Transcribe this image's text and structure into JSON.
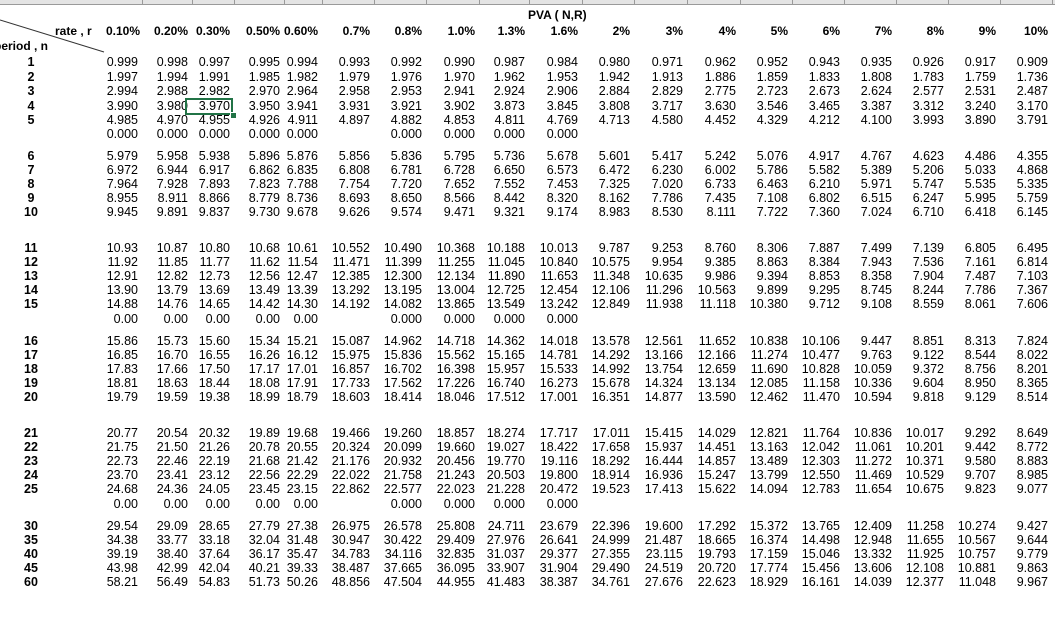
{
  "sheet": {
    "title": "PVA ( N,R)",
    "corner_top": "rate , r",
    "corner_bottom": "period , n",
    "rates": [
      "0.10%",
      "0.20%",
      "0.30%",
      "0.50%",
      "0.60%",
      "0.7%",
      "0.8%",
      "1.0%",
      "1.3%",
      "1.6%",
      "2%",
      "3%",
      "4%",
      "5%",
      "6%",
      "7%",
      "8%",
      "9%",
      "10%"
    ],
    "selected_cell": {
      "row": "4",
      "rate": "0.30%",
      "value": "3.970"
    },
    "rows": [
      {
        "n": "1",
        "values": [
          "0.999",
          "0.998",
          "0.997",
          "0.995",
          "0.994",
          "0.993",
          "0.992",
          "0.990",
          "0.987",
          "0.984",
          "0.980",
          "0.971",
          "0.962",
          "0.952",
          "0.943",
          "0.935",
          "0.926",
          "0.917",
          "0.909"
        ]
      },
      {
        "n": "2",
        "values": [
          "1.997",
          "1.994",
          "1.991",
          "1.985",
          "1.982",
          "1.979",
          "1.976",
          "1.970",
          "1.962",
          "1.953",
          "1.942",
          "1.913",
          "1.886",
          "1.859",
          "1.833",
          "1.808",
          "1.783",
          "1.759",
          "1.736"
        ]
      },
      {
        "n": "3",
        "values": [
          "2.994",
          "2.988",
          "2.982",
          "2.970",
          "2.964",
          "2.958",
          "2.953",
          "2.941",
          "2.924",
          "2.906",
          "2.884",
          "2.829",
          "2.775",
          "2.723",
          "2.673",
          "2.624",
          "2.577",
          "2.531",
          "2.487"
        ]
      },
      {
        "n": "4",
        "values": [
          "3.990",
          "3.980",
          "3.970",
          "3.950",
          "3.941",
          "3.931",
          "3.921",
          "3.902",
          "3.873",
          "3.845",
          "3.808",
          "3.717",
          "3.630",
          "3.546",
          "3.465",
          "3.387",
          "3.312",
          "3.240",
          "3.170"
        ]
      },
      {
        "n": "5",
        "values": [
          "4.985",
          "4.970",
          "4.955",
          "4.926",
          "4.911",
          "4.897",
          "4.882",
          "4.853",
          "4.811",
          "4.769",
          "4.713",
          "4.580",
          "4.452",
          "4.329",
          "4.212",
          "4.100",
          "3.993",
          "3.890",
          "3.791"
        ]
      },
      {
        "n": "",
        "values": [
          "0.000",
          "0.000",
          "0.000",
          "0.000",
          "0.000",
          "",
          "0.000",
          "0.000",
          "0.000",
          "0.000",
          "",
          "",
          "",
          "",
          "",
          "",
          "",
          "",
          ""
        ]
      },
      {
        "n": "6",
        "values": [
          "5.979",
          "5.958",
          "5.938",
          "5.896",
          "5.876",
          "5.856",
          "5.836",
          "5.795",
          "5.736",
          "5.678",
          "5.601",
          "5.417",
          "5.242",
          "5.076",
          "4.917",
          "4.767",
          "4.623",
          "4.486",
          "4.355"
        ]
      },
      {
        "n": "7",
        "values": [
          "6.972",
          "6.944",
          "6.917",
          "6.862",
          "6.835",
          "6.808",
          "6.781",
          "6.728",
          "6.650",
          "6.573",
          "6.472",
          "6.230",
          "6.002",
          "5.786",
          "5.582",
          "5.389",
          "5.206",
          "5.033",
          "4.868"
        ]
      },
      {
        "n": "8",
        "values": [
          "7.964",
          "7.928",
          "7.893",
          "7.823",
          "7.788",
          "7.754",
          "7.720",
          "7.652",
          "7.552",
          "7.453",
          "7.325",
          "7.020",
          "6.733",
          "6.463",
          "6.210",
          "5.971",
          "5.747",
          "5.535",
          "5.335"
        ]
      },
      {
        "n": "9",
        "values": [
          "8.955",
          "8.911",
          "8.866",
          "8.779",
          "8.736",
          "8.693",
          "8.650",
          "8.566",
          "8.442",
          "8.320",
          "8.162",
          "7.786",
          "7.435",
          "7.108",
          "6.802",
          "6.515",
          "6.247",
          "5.995",
          "5.759"
        ]
      },
      {
        "n": "10",
        "values": [
          "9.945",
          "9.891",
          "9.837",
          "9.730",
          "9.678",
          "9.626",
          "9.574",
          "9.471",
          "9.321",
          "9.174",
          "8.983",
          "8.530",
          "8.111",
          "7.722",
          "7.360",
          "7.024",
          "6.710",
          "6.418",
          "6.145"
        ]
      },
      {
        "n": "",
        "values": [
          "",
          "",
          "",
          "",
          "",
          "",
          "",
          "",
          "",
          "",
          "",
          "",
          "",
          "",
          "",
          "",
          "",
          "",
          ""
        ]
      },
      {
        "n": "11",
        "values": [
          "10.93",
          "10.87",
          "10.80",
          "10.68",
          "10.61",
          "10.552",
          "10.490",
          "10.368",
          "10.188",
          "10.013",
          "9.787",
          "9.253",
          "8.760",
          "8.306",
          "7.887",
          "7.499",
          "7.139",
          "6.805",
          "6.495"
        ]
      },
      {
        "n": "12",
        "values": [
          "11.92",
          "11.85",
          "11.77",
          "11.62",
          "11.54",
          "11.471",
          "11.399",
          "11.255",
          "11.045",
          "10.840",
          "10.575",
          "9.954",
          "9.385",
          "8.863",
          "8.384",
          "7.943",
          "7.536",
          "7.161",
          "6.814"
        ]
      },
      {
        "n": "13",
        "values": [
          "12.91",
          "12.82",
          "12.73",
          "12.56",
          "12.47",
          "12.385",
          "12.300",
          "12.134",
          "11.890",
          "11.653",
          "11.348",
          "10.635",
          "9.986",
          "9.394",
          "8.853",
          "8.358",
          "7.904",
          "7.487",
          "7.103"
        ]
      },
      {
        "n": "14",
        "values": [
          "13.90",
          "13.79",
          "13.69",
          "13.49",
          "13.39",
          "13.292",
          "13.195",
          "13.004",
          "12.725",
          "12.454",
          "12.106",
          "11.296",
          "10.563",
          "9.899",
          "9.295",
          "8.745",
          "8.244",
          "7.786",
          "7.367"
        ]
      },
      {
        "n": "15",
        "values": [
          "14.88",
          "14.76",
          "14.65",
          "14.42",
          "14.30",
          "14.192",
          "14.082",
          "13.865",
          "13.549",
          "13.242",
          "12.849",
          "11.938",
          "11.118",
          "10.380",
          "9.712",
          "9.108",
          "8.559",
          "8.061",
          "7.606"
        ]
      },
      {
        "n": "",
        "values": [
          "0.00",
          "0.00",
          "0.00",
          "0.00",
          "0.00",
          "",
          "0.000",
          "0.000",
          "0.000",
          "0.000",
          "",
          "",
          "",
          "",
          "",
          "",
          "",
          "",
          ""
        ]
      },
      {
        "n": "16",
        "values": [
          "15.86",
          "15.73",
          "15.60",
          "15.34",
          "15.21",
          "15.087",
          "14.962",
          "14.718",
          "14.362",
          "14.018",
          "13.578",
          "12.561",
          "11.652",
          "10.838",
          "10.106",
          "9.447",
          "8.851",
          "8.313",
          "7.824"
        ]
      },
      {
        "n": "17",
        "values": [
          "16.85",
          "16.70",
          "16.55",
          "16.26",
          "16.12",
          "15.975",
          "15.836",
          "15.562",
          "15.165",
          "14.781",
          "14.292",
          "13.166",
          "12.166",
          "11.274",
          "10.477",
          "9.763",
          "9.122",
          "8.544",
          "8.022"
        ]
      },
      {
        "n": "18",
        "values": [
          "17.83",
          "17.66",
          "17.50",
          "17.17",
          "17.01",
          "16.857",
          "16.702",
          "16.398",
          "15.957",
          "15.533",
          "14.992",
          "13.754",
          "12.659",
          "11.690",
          "10.828",
          "10.059",
          "9.372",
          "8.756",
          "8.201"
        ]
      },
      {
        "n": "19",
        "values": [
          "18.81",
          "18.63",
          "18.44",
          "18.08",
          "17.91",
          "17.733",
          "17.562",
          "17.226",
          "16.740",
          "16.273",
          "15.678",
          "14.324",
          "13.134",
          "12.085",
          "11.158",
          "10.336",
          "9.604",
          "8.950",
          "8.365"
        ]
      },
      {
        "n": "20",
        "values": [
          "19.79",
          "19.59",
          "19.38",
          "18.99",
          "18.79",
          "18.603",
          "18.414",
          "18.046",
          "17.512",
          "17.001",
          "16.351",
          "14.877",
          "13.590",
          "12.462",
          "11.470",
          "10.594",
          "9.818",
          "9.129",
          "8.514"
        ]
      },
      {
        "n": "",
        "values": [
          "",
          "",
          "",
          "",
          "",
          "",
          "",
          "",
          "",
          "",
          "",
          "",
          "",
          "",
          "",
          "",
          "",
          "",
          ""
        ]
      },
      {
        "n": "21",
        "values": [
          "20.77",
          "20.54",
          "20.32",
          "19.89",
          "19.68",
          "19.466",
          "19.260",
          "18.857",
          "18.274",
          "17.717",
          "17.011",
          "15.415",
          "14.029",
          "12.821",
          "11.764",
          "10.836",
          "10.017",
          "9.292",
          "8.649"
        ]
      },
      {
        "n": "22",
        "values": [
          "21.75",
          "21.50",
          "21.26",
          "20.78",
          "20.55",
          "20.324",
          "20.099",
          "19.660",
          "19.027",
          "18.422",
          "17.658",
          "15.937",
          "14.451",
          "13.163",
          "12.042",
          "11.061",
          "10.201",
          "9.442",
          "8.772"
        ]
      },
      {
        "n": "23",
        "values": [
          "22.73",
          "22.46",
          "22.19",
          "21.68",
          "21.42",
          "21.176",
          "20.932",
          "20.456",
          "19.770",
          "19.116",
          "18.292",
          "16.444",
          "14.857",
          "13.489",
          "12.303",
          "11.272",
          "10.371",
          "9.580",
          "8.883"
        ]
      },
      {
        "n": "24",
        "values": [
          "23.70",
          "23.41",
          "23.12",
          "22.56",
          "22.29",
          "22.022",
          "21.758",
          "21.243",
          "20.503",
          "19.800",
          "18.914",
          "16.936",
          "15.247",
          "13.799",
          "12.550",
          "11.469",
          "10.529",
          "9.707",
          "8.985"
        ]
      },
      {
        "n": "25",
        "values": [
          "24.68",
          "24.36",
          "24.05",
          "23.45",
          "23.15",
          "22.862",
          "22.577",
          "22.023",
          "21.228",
          "20.472",
          "19.523",
          "17.413",
          "15.622",
          "14.094",
          "12.783",
          "11.654",
          "10.675",
          "9.823",
          "9.077"
        ]
      },
      {
        "n": "",
        "values": [
          "0.00",
          "0.00",
          "0.00",
          "0.00",
          "0.00",
          "",
          "0.000",
          "0.000",
          "0.000",
          "0.000",
          "",
          "",
          "",
          "",
          "",
          "",
          "",
          "",
          ""
        ]
      },
      {
        "n": "30",
        "values": [
          "29.54",
          "29.09",
          "28.65",
          "27.79",
          "27.38",
          "26.975",
          "26.578",
          "25.808",
          "24.711",
          "23.679",
          "22.396",
          "19.600",
          "17.292",
          "15.372",
          "13.765",
          "12.409",
          "11.258",
          "10.274",
          "9.427"
        ]
      },
      {
        "n": "35",
        "values": [
          "34.38",
          "33.77",
          "33.18",
          "32.04",
          "31.48",
          "30.947",
          "30.422",
          "29.409",
          "27.976",
          "26.641",
          "24.999",
          "21.487",
          "18.665",
          "16.374",
          "14.498",
          "12.948",
          "11.655",
          "10.567",
          "9.644"
        ]
      },
      {
        "n": "40",
        "values": [
          "39.19",
          "38.40",
          "37.64",
          "36.17",
          "35.47",
          "34.783",
          "34.116",
          "32.835",
          "31.037",
          "29.377",
          "27.355",
          "23.115",
          "19.793",
          "17.159",
          "15.046",
          "13.332",
          "11.925",
          "10.757",
          "9.779"
        ]
      },
      {
        "n": "45",
        "values": [
          "43.98",
          "42.99",
          "42.04",
          "40.21",
          "39.33",
          "38.487",
          "37.665",
          "36.095",
          "33.907",
          "31.904",
          "29.490",
          "24.519",
          "20.720",
          "17.774",
          "15.456",
          "13.606",
          "12.108",
          "10.881",
          "9.863"
        ]
      },
      {
        "n": "60",
        "values": [
          "58.21",
          "56.49",
          "54.83",
          "51.73",
          "50.26",
          "48.856",
          "47.504",
          "44.955",
          "41.483",
          "38.387",
          "34.761",
          "27.676",
          "22.623",
          "18.929",
          "16.161",
          "14.039",
          "12.377",
          "11.048",
          "9.967"
        ]
      }
    ]
  }
}
